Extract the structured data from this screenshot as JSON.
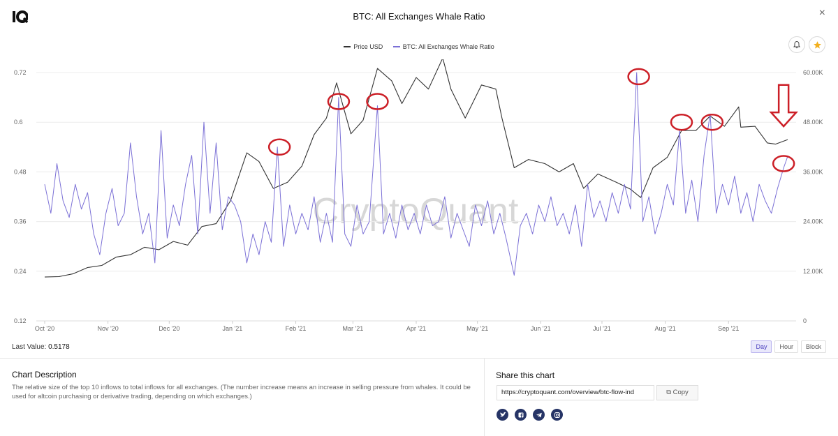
{
  "header": {
    "title": "BTC: All Exchanges Whale Ratio",
    "close_glyph": "×",
    "logo_icon": "cryptoquant-logo-icon",
    "bell_icon": "bell-icon",
    "star_icon": "star-icon"
  },
  "legend": [
    {
      "label": "Price USD",
      "color": "#333333"
    },
    {
      "label": "BTC: All Exchanges Whale Ratio",
      "color": "#7b70d6"
    }
  ],
  "watermark": "CryptoQuant",
  "chart_data": {
    "type": "line",
    "x_tick_labels": [
      "Oct '20",
      "Nov '20",
      "Dec '20",
      "Jan '21",
      "Feb '21",
      "Mar '21",
      "Apr '21",
      "May '21",
      "Jun '21",
      "Jul '21",
      "Aug '21",
      "Sep '21"
    ],
    "x_range": [
      "2020-10-01",
      "2021-09-30"
    ],
    "y_left": {
      "ticks": [
        "0.72",
        "0.6",
        "0.48",
        "0.36",
        "0.24",
        "0.12"
      ],
      "range": [
        0.12,
        0.72
      ]
    },
    "y_right": {
      "ticks": [
        "60.00K",
        "48.00K",
        "36.00K",
        "24.00K",
        "12.00K",
        "0"
      ],
      "range": [
        0,
        60000
      ]
    },
    "grid": true,
    "legend_position": "top-center",
    "series": [
      {
        "name": "Price USD",
        "axis": "right",
        "color": "#333333",
        "points": [
          [
            "2020-10-01",
            10600
          ],
          [
            "2020-10-08",
            10700
          ],
          [
            "2020-10-15",
            11400
          ],
          [
            "2020-10-22",
            12900
          ],
          [
            "2020-10-29",
            13400
          ],
          [
            "2020-11-05",
            15400
          ],
          [
            "2020-11-12",
            16000
          ],
          [
            "2020-11-19",
            17800
          ],
          [
            "2020-11-26",
            17200
          ],
          [
            "2020-12-03",
            19200
          ],
          [
            "2020-12-10",
            18300
          ],
          [
            "2020-12-17",
            22800
          ],
          [
            "2020-12-24",
            23500
          ],
          [
            "2020-12-31",
            29000
          ],
          [
            "2021-01-08",
            40600
          ],
          [
            "2021-01-14",
            38500
          ],
          [
            "2021-01-21",
            32000
          ],
          [
            "2021-01-28",
            33500
          ],
          [
            "2021-02-04",
            37400
          ],
          [
            "2021-02-10",
            45000
          ],
          [
            "2021-02-16",
            49000
          ],
          [
            "2021-02-21",
            57500
          ],
          [
            "2021-02-28",
            45200
          ],
          [
            "2021-03-06",
            48500
          ],
          [
            "2021-03-13",
            61000
          ],
          [
            "2021-03-20",
            58000
          ],
          [
            "2021-03-25",
            52500
          ],
          [
            "2021-04-01",
            58800
          ],
          [
            "2021-04-07",
            56000
          ],
          [
            "2021-04-14",
            63500
          ],
          [
            "2021-04-18",
            56000
          ],
          [
            "2021-04-25",
            49000
          ],
          [
            "2021-05-03",
            57000
          ],
          [
            "2021-05-10",
            56000
          ],
          [
            "2021-05-13",
            49000
          ],
          [
            "2021-05-19",
            37000
          ],
          [
            "2021-05-26",
            39000
          ],
          [
            "2021-06-03",
            38000
          ],
          [
            "2021-06-10",
            36000
          ],
          [
            "2021-06-17",
            38000
          ],
          [
            "2021-06-22",
            32000
          ],
          [
            "2021-06-29",
            35500
          ],
          [
            "2021-07-08",
            33500
          ],
          [
            "2021-07-15",
            31800
          ],
          [
            "2021-07-20",
            29800
          ],
          [
            "2021-07-26",
            37000
          ],
          [
            "2021-08-02",
            39500
          ],
          [
            "2021-08-09",
            46000
          ],
          [
            "2021-08-16",
            46000
          ],
          [
            "2021-08-23",
            49500
          ],
          [
            "2021-08-30",
            47000
          ],
          [
            "2021-09-06",
            51700
          ],
          [
            "2021-09-07",
            46800
          ],
          [
            "2021-09-14",
            47000
          ],
          [
            "2021-09-20",
            43000
          ],
          [
            "2021-09-24",
            42700
          ],
          [
            "2021-09-30",
            43800
          ]
        ]
      },
      {
        "name": "BTC: All Exchanges Whale Ratio",
        "axis": "left",
        "color": "#7b70d6",
        "points": [
          [
            "2020-10-01",
            0.45
          ],
          [
            "2020-10-04",
            0.38
          ],
          [
            "2020-10-07",
            0.5
          ],
          [
            "2020-10-10",
            0.41
          ],
          [
            "2020-10-13",
            0.37
          ],
          [
            "2020-10-16",
            0.45
          ],
          [
            "2020-10-19",
            0.39
          ],
          [
            "2020-10-22",
            0.43
          ],
          [
            "2020-10-25",
            0.33
          ],
          [
            "2020-10-28",
            0.28
          ],
          [
            "2020-10-31",
            0.38
          ],
          [
            "2020-11-03",
            0.44
          ],
          [
            "2020-11-06",
            0.35
          ],
          [
            "2020-11-09",
            0.38
          ],
          [
            "2020-11-12",
            0.55
          ],
          [
            "2020-11-15",
            0.42
          ],
          [
            "2020-11-18",
            0.33
          ],
          [
            "2020-11-21",
            0.38
          ],
          [
            "2020-11-24",
            0.26
          ],
          [
            "2020-11-27",
            0.58
          ],
          [
            "2020-11-30",
            0.32
          ],
          [
            "2020-12-03",
            0.4
          ],
          [
            "2020-12-06",
            0.35
          ],
          [
            "2020-12-09",
            0.45
          ],
          [
            "2020-12-12",
            0.52
          ],
          [
            "2020-12-15",
            0.33
          ],
          [
            "2020-12-18",
            0.6
          ],
          [
            "2020-12-21",
            0.38
          ],
          [
            "2020-12-24",
            0.55
          ],
          [
            "2020-12-27",
            0.34
          ],
          [
            "2020-12-30",
            0.42
          ],
          [
            "2021-01-02",
            0.4
          ],
          [
            "2021-01-05",
            0.36
          ],
          [
            "2021-01-08",
            0.26
          ],
          [
            "2021-01-11",
            0.33
          ],
          [
            "2021-01-14",
            0.28
          ],
          [
            "2021-01-17",
            0.36
          ],
          [
            "2021-01-20",
            0.31
          ],
          [
            "2021-01-23",
            0.54
          ],
          [
            "2021-01-26",
            0.3
          ],
          [
            "2021-01-29",
            0.4
          ],
          [
            "2021-02-01",
            0.33
          ],
          [
            "2021-02-04",
            0.38
          ],
          [
            "2021-02-07",
            0.34
          ],
          [
            "2021-02-10",
            0.42
          ],
          [
            "2021-02-13",
            0.31
          ],
          [
            "2021-02-16",
            0.38
          ],
          [
            "2021-02-19",
            0.31
          ],
          [
            "2021-02-22",
            0.66
          ],
          [
            "2021-02-25",
            0.33
          ],
          [
            "2021-02-28",
            0.3
          ],
          [
            "2021-03-03",
            0.4
          ],
          [
            "2021-03-06",
            0.33
          ],
          [
            "2021-03-09",
            0.36
          ],
          [
            "2021-03-13",
            0.64
          ],
          [
            "2021-03-16",
            0.33
          ],
          [
            "2021-03-19",
            0.38
          ],
          [
            "2021-03-22",
            0.32
          ],
          [
            "2021-03-25",
            0.4
          ],
          [
            "2021-03-28",
            0.34
          ],
          [
            "2021-03-31",
            0.38
          ],
          [
            "2021-04-03",
            0.33
          ],
          [
            "2021-04-06",
            0.4
          ],
          [
            "2021-04-09",
            0.35
          ],
          [
            "2021-04-12",
            0.36
          ],
          [
            "2021-04-15",
            0.42
          ],
          [
            "2021-04-18",
            0.32
          ],
          [
            "2021-04-21",
            0.38
          ],
          [
            "2021-04-24",
            0.34
          ],
          [
            "2021-04-27",
            0.3
          ],
          [
            "2021-04-30",
            0.4
          ],
          [
            "2021-05-03",
            0.35
          ],
          [
            "2021-05-06",
            0.41
          ],
          [
            "2021-05-09",
            0.33
          ],
          [
            "2021-05-12",
            0.38
          ],
          [
            "2021-05-15",
            0.32
          ],
          [
            "2021-05-19",
            0.23
          ],
          [
            "2021-05-22",
            0.35
          ],
          [
            "2021-05-25",
            0.38
          ],
          [
            "2021-05-28",
            0.33
          ],
          [
            "2021-05-31",
            0.4
          ],
          [
            "2021-06-03",
            0.36
          ],
          [
            "2021-06-06",
            0.42
          ],
          [
            "2021-06-09",
            0.35
          ],
          [
            "2021-06-12",
            0.38
          ],
          [
            "2021-06-15",
            0.33
          ],
          [
            "2021-06-18",
            0.4
          ],
          [
            "2021-06-21",
            0.3
          ],
          [
            "2021-06-24",
            0.45
          ],
          [
            "2021-06-27",
            0.37
          ],
          [
            "2021-06-30",
            0.41
          ],
          [
            "2021-07-03",
            0.36
          ],
          [
            "2021-07-06",
            0.43
          ],
          [
            "2021-07-09",
            0.38
          ],
          [
            "2021-07-12",
            0.45
          ],
          [
            "2021-07-15",
            0.39
          ],
          [
            "2021-07-18",
            0.72
          ],
          [
            "2021-07-21",
            0.36
          ],
          [
            "2021-07-24",
            0.42
          ],
          [
            "2021-07-27",
            0.33
          ],
          [
            "2021-07-30",
            0.38
          ],
          [
            "2021-08-02",
            0.45
          ],
          [
            "2021-08-05",
            0.4
          ],
          [
            "2021-08-08",
            0.58
          ],
          [
            "2021-08-11",
            0.38
          ],
          [
            "2021-08-14",
            0.46
          ],
          [
            "2021-08-17",
            0.36
          ],
          [
            "2021-08-20",
            0.52
          ],
          [
            "2021-08-23",
            0.62
          ],
          [
            "2021-08-26",
            0.38
          ],
          [
            "2021-08-29",
            0.45
          ],
          [
            "2021-09-01",
            0.4
          ],
          [
            "2021-09-04",
            0.47
          ],
          [
            "2021-09-07",
            0.38
          ],
          [
            "2021-09-10",
            0.43
          ],
          [
            "2021-09-13",
            0.36
          ],
          [
            "2021-09-16",
            0.45
          ],
          [
            "2021-09-19",
            0.41
          ],
          [
            "2021-09-22",
            0.38
          ],
          [
            "2021-09-25",
            0.44
          ],
          [
            "2021-09-28",
            0.49
          ],
          [
            "2021-09-30",
            0.5178
          ]
        ]
      }
    ],
    "annotations": {
      "color": "#cc1f27",
      "circles": [
        {
          "date": "2021-01-24",
          "value": 0.54
        },
        {
          "date": "2021-02-22",
          "value": 0.65
        },
        {
          "date": "2021-03-13",
          "value": 0.65
        },
        {
          "date": "2021-07-19",
          "value": 0.71
        },
        {
          "date": "2021-08-09",
          "value": 0.6
        },
        {
          "date": "2021-08-24",
          "value": 0.6
        },
        {
          "date": "2021-09-28",
          "value": 0.5
        }
      ],
      "arrow": {
        "date": "2021-09-28",
        "from": 0.69,
        "to": 0.59
      }
    }
  },
  "footer": {
    "last_value_label": "Last Value:",
    "last_value": "0.5178",
    "timeframes": [
      {
        "label": "Day",
        "active": true
      },
      {
        "label": "Hour",
        "active": false
      },
      {
        "label": "Block",
        "active": false
      }
    ]
  },
  "description": {
    "title": "Chart Description",
    "text": "The relative size of the top 10 inflows to total inflows for all exchanges. (The number increase means an increase in selling pressure from whales. It could be used for altcoin purchasing or derivative trading, depending on which exchanges.)"
  },
  "share": {
    "title": "Share this chart",
    "url": "https://cryptoquant.com/overview/btc-flow-ind",
    "copy_label": "Copy",
    "socials": [
      {
        "icon": "twitter-icon"
      },
      {
        "icon": "facebook-icon"
      },
      {
        "icon": "telegram-icon"
      },
      {
        "icon": "instagram-icon"
      }
    ]
  }
}
